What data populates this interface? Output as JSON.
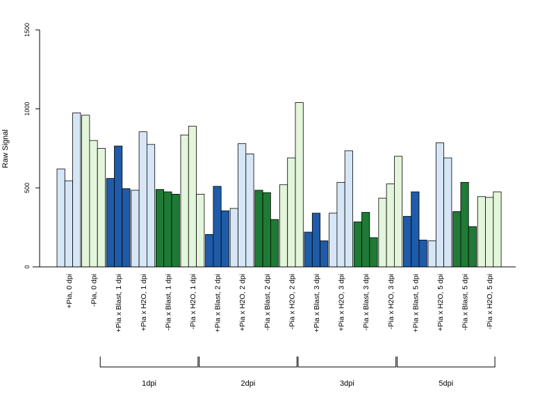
{
  "chart_data": {
    "type": "bar",
    "ylabel": "Raw Signal",
    "ylim": [
      0,
      1500
    ],
    "yticks": [
      0,
      500,
      1000,
      1500
    ],
    "grid": false,
    "categories": [
      "+Pia, 0 dpi",
      "-Pia, 0 dpi",
      "+Pia x Blast, 1 dpi",
      "+Pia x H2O, 1 dpi",
      "-Pia x Blast, 1 dpi",
      "-Pia x H2O, 1 dpi",
      "+Pia x Blast, 2 dpi",
      "+Pia x H2O, 2 dpi",
      "-Pia x Blast, 2 dpi",
      "-Pia x H2O, 2 dpi",
      "+Pia x Blast, 3 dpi",
      "+Pia x H2O, 3 dpi",
      "-Pia x Blast, 3 dpi",
      "-Pia x H2O, 3 dpi",
      "+Pia x Blast, 5 dpi",
      "+Pia x H2O, 5 dpi",
      "-Pia x Blast, 5 dpi",
      "-Pia x H2O, 5 dpi"
    ],
    "colors": [
      "#d6e6f7",
      "#e3f5da",
      "#1f5ba8",
      "#d6e6f7",
      "#1e7a35",
      "#e3f5da",
      "#1f5ba8",
      "#d6e6f7",
      "#1e7a35",
      "#e3f5da",
      "#1f5ba8",
      "#d6e6f7",
      "#1e7a35",
      "#e3f5da",
      "#1f5ba8",
      "#d6e6f7",
      "#1e7a35",
      "#e3f5da"
    ],
    "replicates": [
      [
        620,
        545,
        975
      ],
      [
        960,
        800,
        750
      ],
      [
        560,
        765,
        495
      ],
      [
        485,
        855,
        775
      ],
      [
        490,
        475,
        460
      ],
      [
        835,
        890,
        460
      ],
      [
        205,
        510,
        355
      ],
      [
        370,
        780,
        715
      ],
      [
        485,
        470,
        300
      ],
      [
        520,
        690,
        1040
      ],
      [
        220,
        340,
        165
      ],
      [
        340,
        535,
        735
      ],
      [
        285,
        345,
        185
      ],
      [
        435,
        525,
        700
      ],
      [
        320,
        475,
        170
      ],
      [
        165,
        785,
        690
      ],
      [
        350,
        535,
        255
      ],
      [
        445,
        440,
        475
      ]
    ],
    "groups": [
      {
        "label": "1dpi",
        "from": 2,
        "to": 5
      },
      {
        "label": "2dpi",
        "from": 6,
        "to": 9
      },
      {
        "label": "3dpi",
        "from": 10,
        "to": 13
      },
      {
        "label": "5dpi",
        "from": 14,
        "to": 17
      }
    ]
  }
}
